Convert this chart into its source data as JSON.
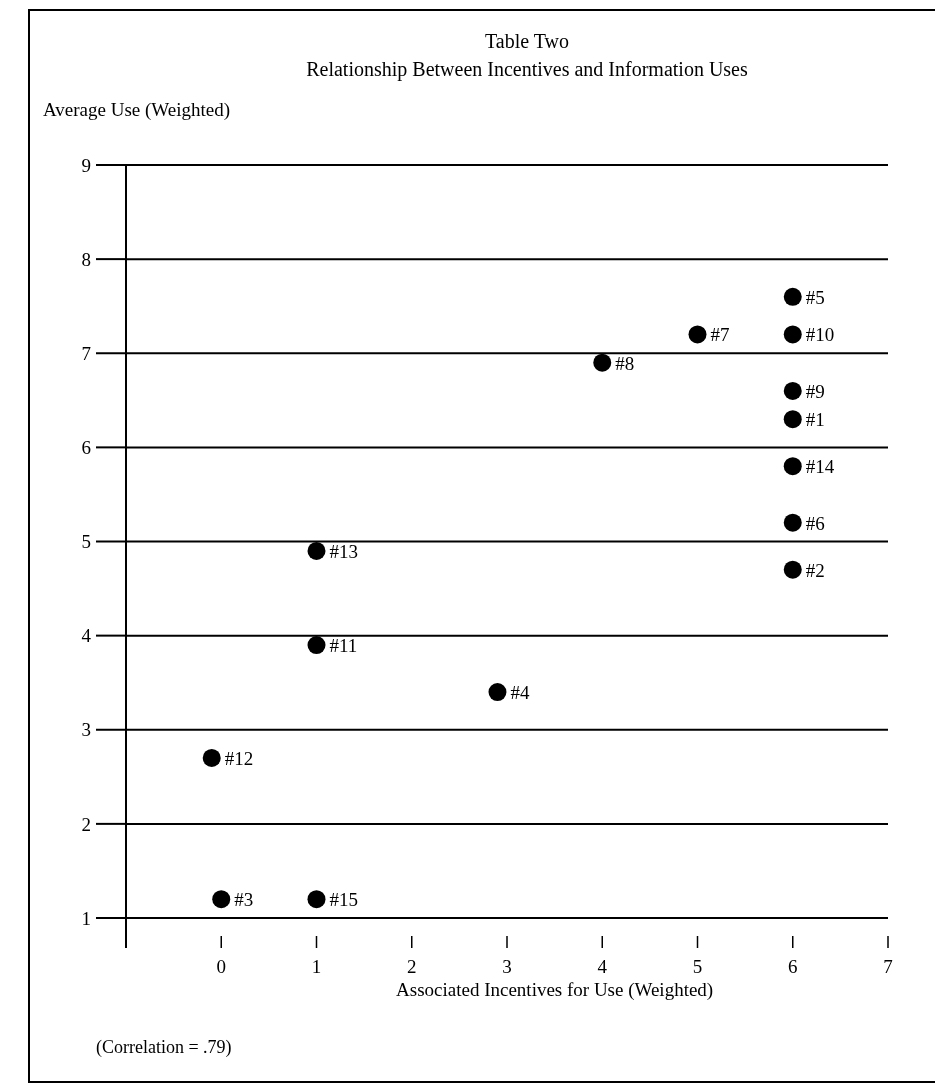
{
  "chart_data": {
    "type": "scatter",
    "title": "Table Two",
    "subtitle": "Relationship Between Incentives and Information Uses",
    "ylabel": "Average Use (Weighted)",
    "xlabel": "Associated Incentives for Use (Weighted)",
    "annotations": [
      "(Correlation = .79)",
      {
        "text": "#1",
        "x": 6,
        "y": 6.3
      },
      {
        "text": "#2",
        "x": 6,
        "y": 4.7
      },
      {
        "text": "#3",
        "x": 0,
        "y": 1.2
      },
      {
        "text": "#4",
        "x": 2.9,
        "y": 3.4
      },
      {
        "text": "#5",
        "x": 6,
        "y": 7.6
      },
      {
        "text": "#6",
        "x": 6,
        "y": 5.2
      },
      {
        "text": "#7",
        "x": 5,
        "y": 7.2
      },
      {
        "text": "#8",
        "x": 4,
        "y": 6.9
      },
      {
        "text": "#9",
        "x": 6,
        "y": 6.6
      },
      {
        "text": "#10",
        "x": 6,
        "y": 7.2
      },
      {
        "text": "#11",
        "x": 1,
        "y": 3.9
      },
      {
        "text": "#12",
        "x": -0.1,
        "y": 2.7
      },
      {
        "text": "#13",
        "x": 1,
        "y": 4.9
      },
      {
        "text": "#14",
        "x": 6,
        "y": 5.8
      },
      {
        "text": "#15",
        "x": 1,
        "y": 1.2
      }
    ],
    "x": [
      6,
      6,
      0,
      2.9,
      6,
      6,
      5,
      4,
      6,
      6,
      1,
      -0.1,
      1,
      6,
      1
    ],
    "values": [
      6.3,
      4.7,
      1.2,
      3.4,
      7.6,
      5.2,
      7.2,
      6.9,
      6.6,
      7.2,
      3.9,
      2.7,
      4.9,
      5.8,
      1.2
    ],
    "color": "#000000",
    "marker": "circle",
    "grid": "y",
    "xlim": [
      -1,
      7
    ],
    "xticks": [
      0,
      1,
      2,
      3,
      4,
      5,
      6,
      7
    ],
    "ylim": [
      1,
      9
    ],
    "yticks": [
      1,
      2,
      3,
      4,
      5,
      6,
      7,
      8,
      9
    ]
  }
}
